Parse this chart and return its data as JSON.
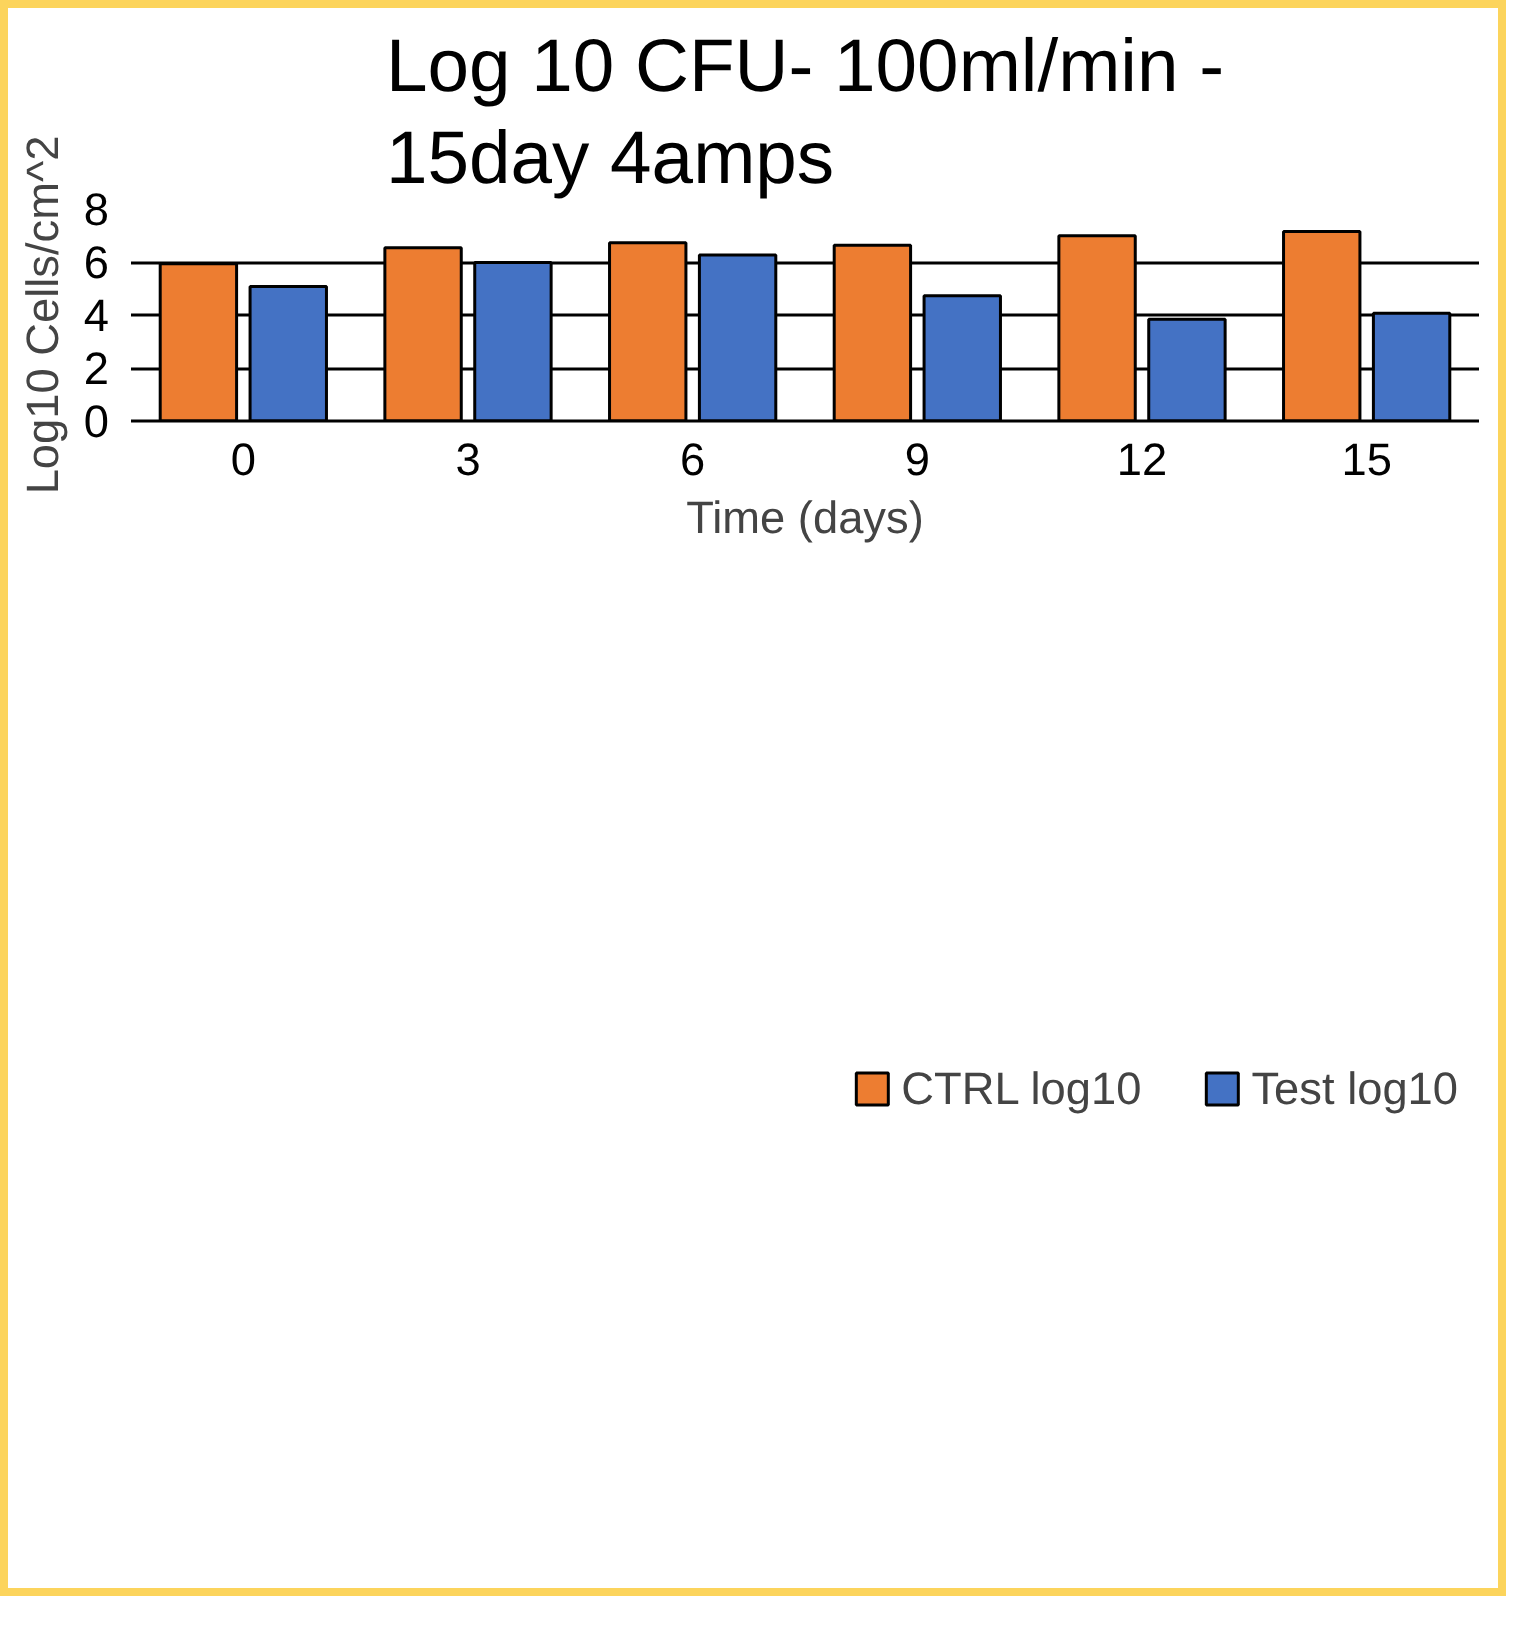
{
  "chart_data": {
    "type": "bar",
    "title": "Log 10 CFU- 100ml/min -\n15day 4amps",
    "xlabel": "Time (days)",
    "ylabel": "Log10 Cells/cm^2",
    "categories": [
      "0",
      "3",
      "6",
      "9",
      "12",
      "15"
    ],
    "series": [
      {
        "name": "CTRL log10",
        "color": "#ed7d31",
        "values": [
          5.93,
          6.54,
          6.73,
          6.63,
          6.99,
          7.15
        ]
      },
      {
        "name": "Test log10",
        "color": "#4472c4",
        "values": [
          5.08,
          5.98,
          6.26,
          4.73,
          3.84,
          4.07
        ]
      }
    ],
    "ylim": [
      0,
      8
    ],
    "yticks": [
      0,
      2,
      4,
      6,
      8
    ],
    "grid": "y",
    "legend": "bottom"
  }
}
